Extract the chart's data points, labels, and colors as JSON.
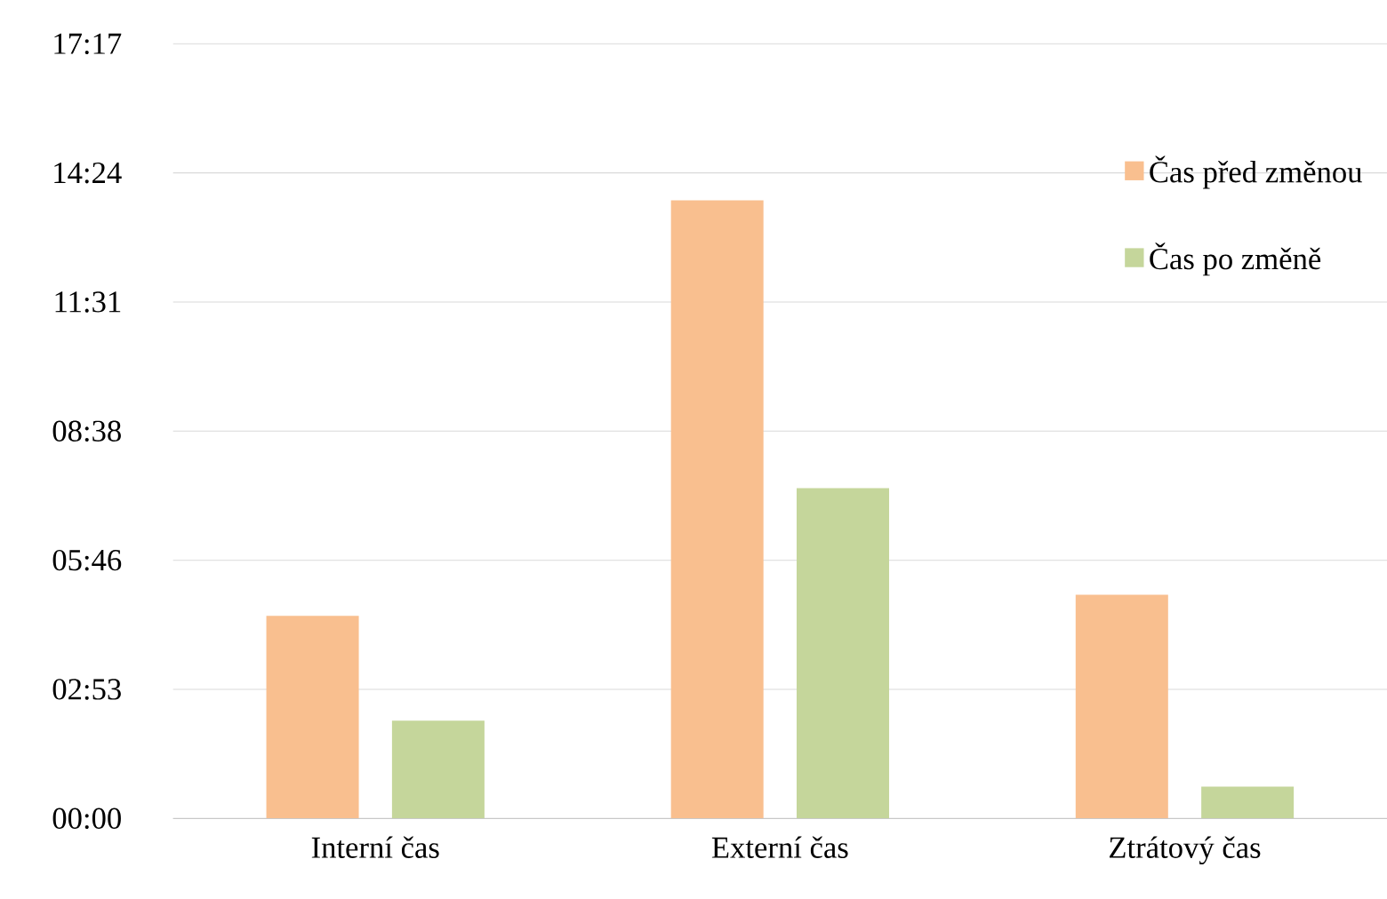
{
  "chart_data": {
    "type": "bar",
    "categories": [
      "Interní čas",
      "Externí čas",
      "Ztrátový čas"
    ],
    "series": [
      {
        "name": "Čas před změnou",
        "color": "#f9bf8f",
        "values": [
          4.52,
          13.79,
          4.99
        ]
      },
      {
        "name": "Čas po změně",
        "color": "#c5d69b",
        "values": [
          2.18,
          7.37,
          0.71
        ]
      }
    ],
    "ylim": [
      0,
      17.28
    ],
    "yticks": [
      {
        "value": 0,
        "label": "00:00"
      },
      {
        "value": 2.88,
        "label": "02:53"
      },
      {
        "value": 5.76,
        "label": "05:46"
      },
      {
        "value": 8.64,
        "label": "08:38"
      },
      {
        "value": 11.52,
        "label": "11:31"
      },
      {
        "value": 14.4,
        "label": "14:24"
      },
      {
        "value": 17.28,
        "label": "17:17"
      }
    ],
    "grid": "y",
    "legend": "right"
  }
}
